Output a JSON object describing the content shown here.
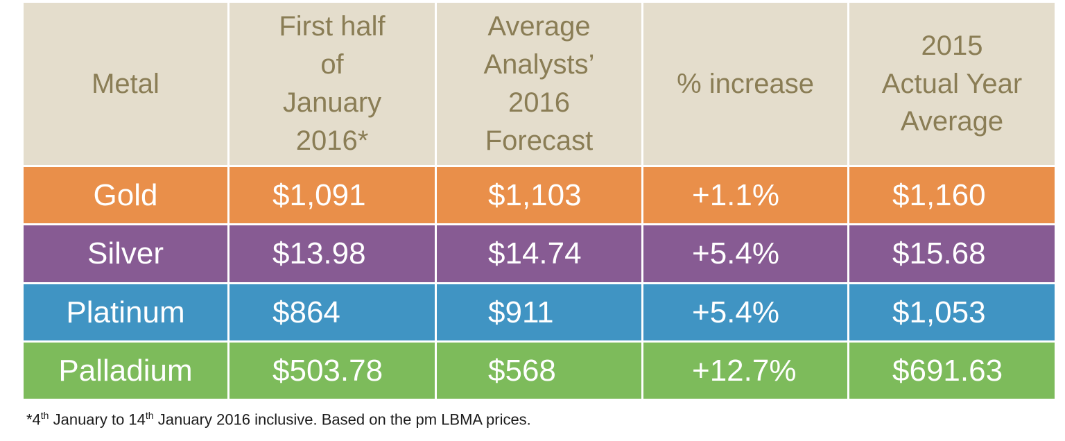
{
  "table": {
    "headers": [
      "Metal",
      "First half\nof\nJanuary\n2016*",
      "Average\nAnalysts’\n2016\nForecast",
      "% increase",
      "2015\nActual Year\nAverage"
    ],
    "rows": [
      {
        "metal": "Gold",
        "first_half": "$1,091",
        "forecast": "$1,103",
        "increase": "+1.1%",
        "actual_2015": "$1,160",
        "color": "#e98f4a"
      },
      {
        "metal": "Silver",
        "first_half": "$13.98",
        "forecast": "$14.74",
        "increase": "+5.4%",
        "actual_2015": "$15.68",
        "color": "#875b93"
      },
      {
        "metal": "Platinum",
        "first_half": "$864",
        "forecast": "$911",
        "increase": "+5.4%",
        "actual_2015": "$1,053",
        "color": "#4094c3"
      },
      {
        "metal": "Palladium",
        "first_half": "$503.78",
        "forecast": "$568",
        "increase": "+12.7%",
        "actual_2015": "$691.63",
        "color": "#7dbb5b"
      }
    ],
    "header_bg": "#e4ddcc",
    "header_text_color": "#8a7d55"
  },
  "footnote": {
    "prefix": "*4",
    "sup1": "th",
    "middle": " January to 14",
    "sup2": "th",
    "suffix": " January 2016 inclusive. Based on the pm LBMA prices."
  }
}
